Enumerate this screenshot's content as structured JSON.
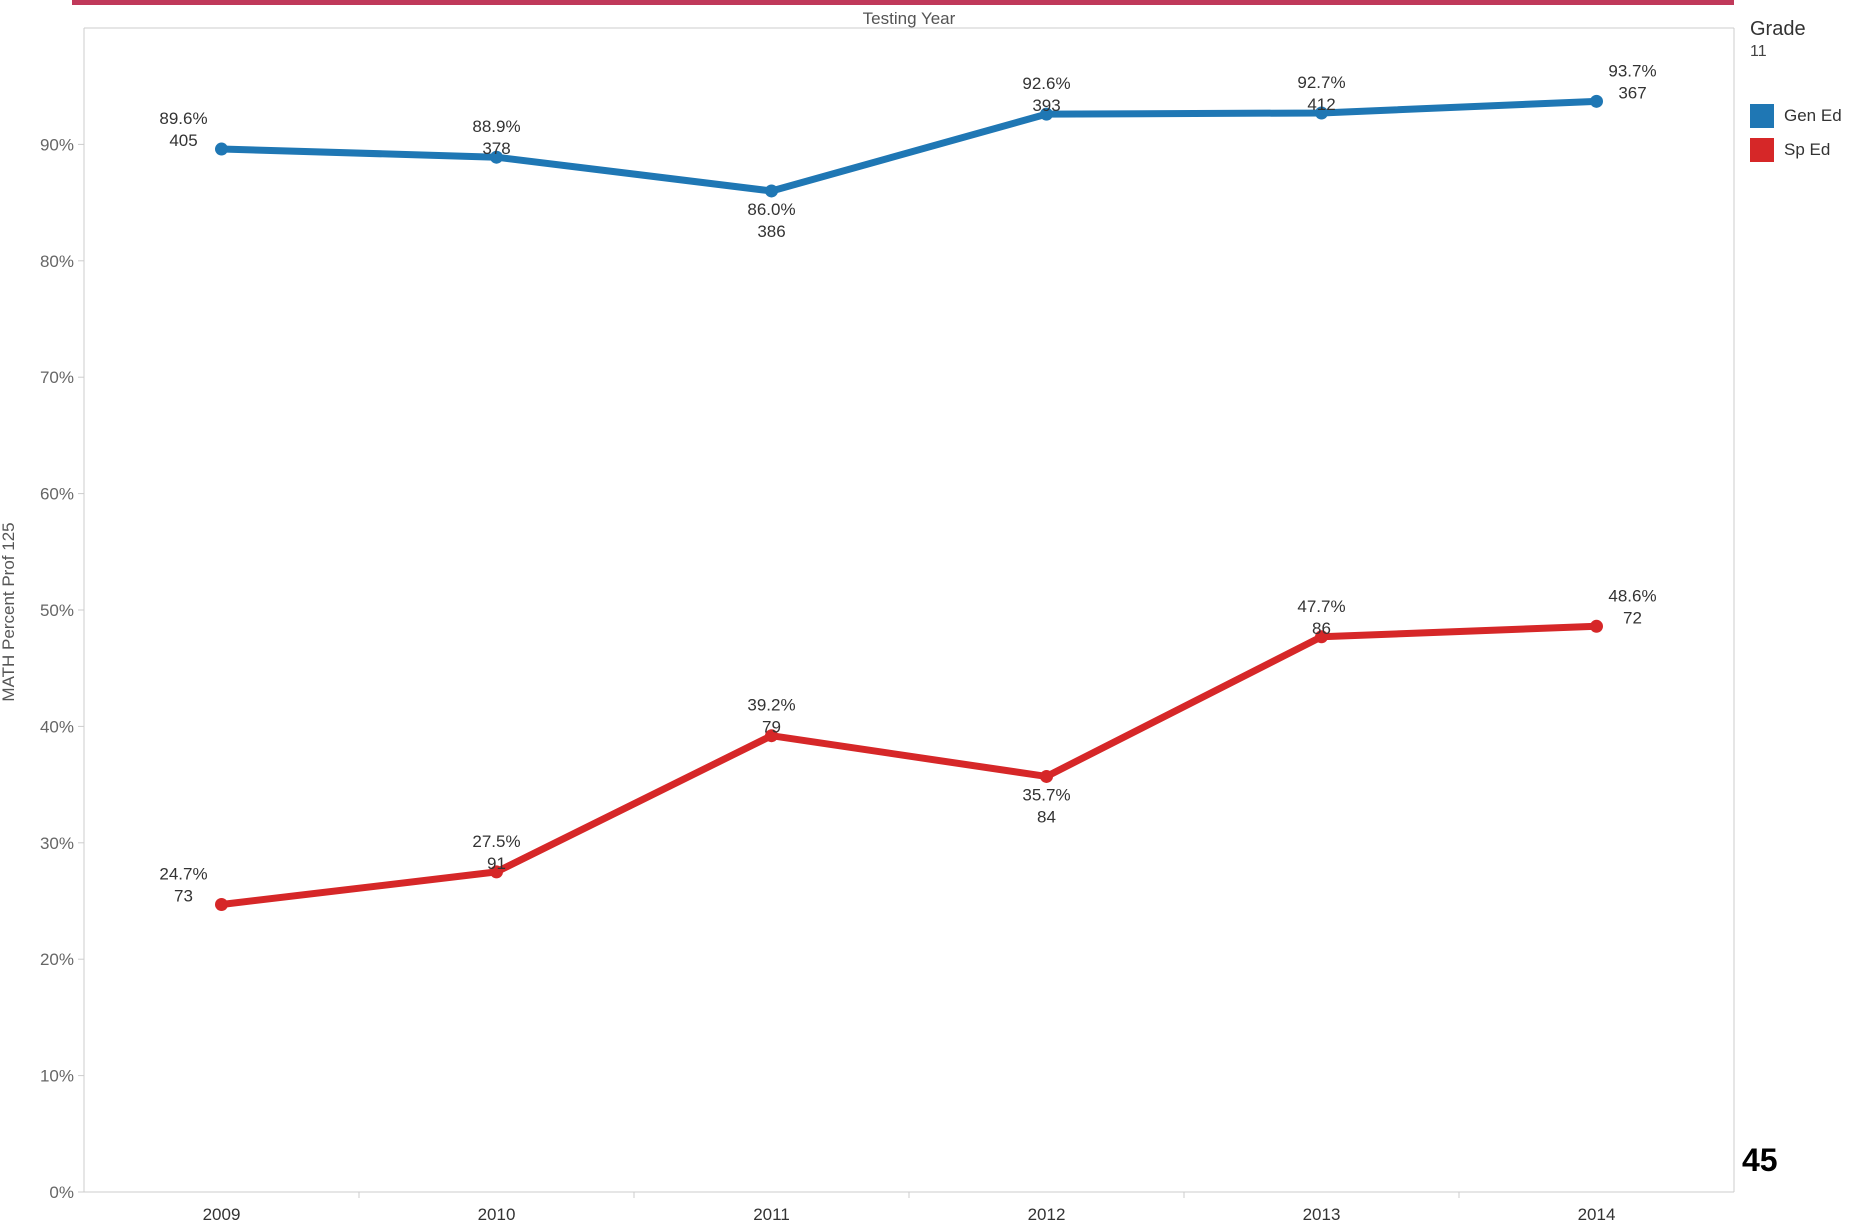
{
  "chart_data": {
    "type": "line",
    "title": "Testing Year",
    "xlabel": "",
    "ylabel": "MATH Percent Prof 125",
    "categories": [
      "2009",
      "2010",
      "2011",
      "2012",
      "2013",
      "2014"
    ],
    "ylim": [
      0,
      100
    ],
    "yticks": [
      0,
      10,
      20,
      30,
      40,
      50,
      60,
      70,
      80,
      90
    ],
    "ytick_labels": [
      "0%",
      "10%",
      "20%",
      "30%",
      "40%",
      "50%",
      "60%",
      "70%",
      "80%",
      "90%"
    ],
    "grid": false,
    "legend_position": "top-right",
    "series": [
      {
        "name": "Gen Ed",
        "color": "#1f77b4",
        "values": [
          89.6,
          88.9,
          86.0,
          92.6,
          92.7,
          93.7
        ],
        "labels": [
          "89.6%",
          "88.9%",
          "86.0%",
          "92.6%",
          "92.7%",
          "93.7%"
        ],
        "counts": [
          "405",
          "378",
          "386",
          "393",
          "412",
          "367"
        ]
      },
      {
        "name": "Sp Ed",
        "color": "#d62728",
        "values": [
          24.7,
          27.5,
          39.2,
          35.7,
          47.7,
          48.6
        ],
        "labels": [
          "24.7%",
          "27.5%",
          "39.2%",
          "35.7%",
          "47.7%",
          "48.6%"
        ],
        "counts": [
          "73",
          "91",
          "79",
          "84",
          "86",
          "72"
        ]
      }
    ]
  },
  "legend": {
    "title": "Grade",
    "subtitle": "11"
  },
  "page_number": "45",
  "colors": {
    "top_bar": "#c0395a",
    "axis": "#cccccc"
  }
}
